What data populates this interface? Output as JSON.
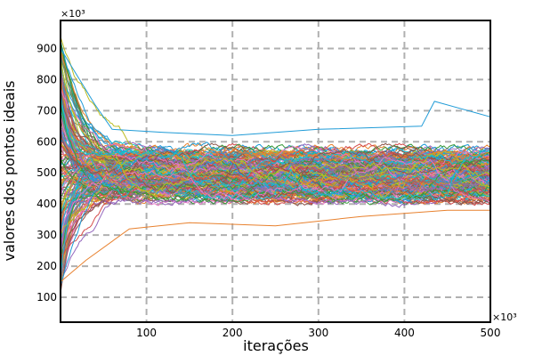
{
  "chart_data": {
    "type": "line",
    "xlabel": "iterações",
    "ylabel": "valores dos pontos ideais",
    "x_multiplier": "×10³",
    "y_multiplier": "×10³",
    "xlim": [
      0,
      500
    ],
    "ylim": [
      20,
      990
    ],
    "xticks": [
      100,
      200,
      300,
      400,
      500
    ],
    "yticks": [
      100,
      200,
      300,
      400,
      500,
      600,
      700,
      800,
      900
    ],
    "grid": true,
    "series_count": 200,
    "colors": [
      "#1f9bd7",
      "#e8812e",
      "#3a9a3a",
      "#d44a4a",
      "#9467bd",
      "#8c564b",
      "#e377c2",
      "#7f7f7f",
      "#bcbd22",
      "#17becf"
    ],
    "convergence_band": [
      410,
      580
    ],
    "outlier_traces": [
      {
        "x": [
          0,
          40,
          60,
          120,
          200,
          300,
          420,
          435,
          500
        ],
        "values": [
          900,
          720,
          640,
          630,
          620,
          640,
          650,
          730,
          680
        ]
      },
      {
        "x": [
          0,
          30,
          80,
          150,
          250,
          350,
          450,
          500
        ],
        "values": [
          150,
          220,
          320,
          340,
          330,
          360,
          380,
          380
        ]
      }
    ]
  }
}
